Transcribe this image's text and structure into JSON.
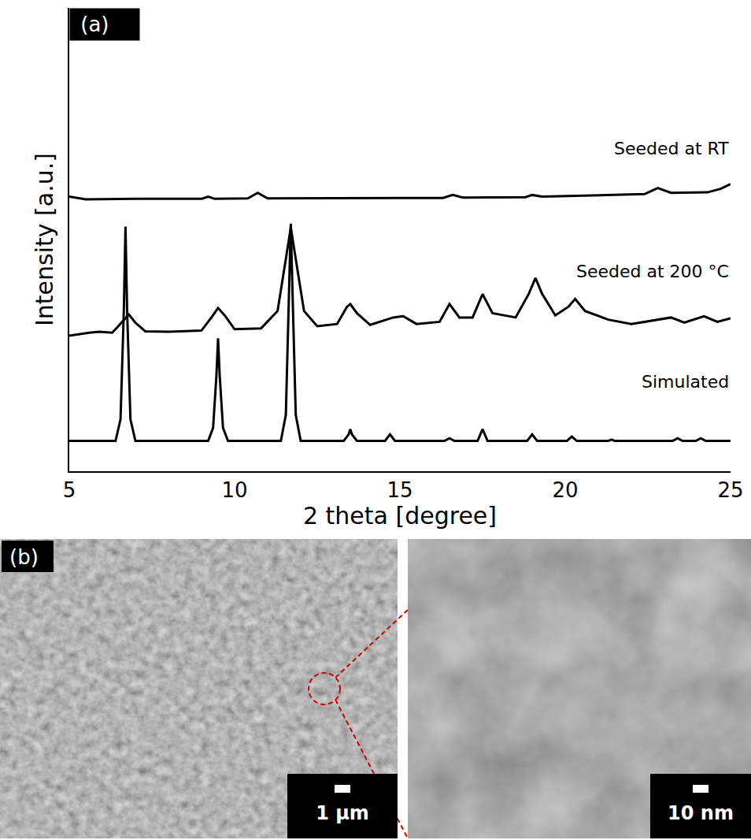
{
  "chart_data": {
    "type": "line",
    "annotations": [
      "(a)"
    ],
    "x_label": "2 theta [degree]",
    "y_label": "Intensity [a.u.]",
    "xlim": [
      5,
      25
    ],
    "xticks": [
      5,
      10,
      15,
      20,
      25
    ],
    "ylim": [
      -7,
      100
    ],
    "yticks": [],
    "tick_labels": "x",
    "grid": false,
    "series": [
      {
        "name": "Seeded at RT",
        "color": "#000000",
        "x": [
          5,
          5.5,
          7,
          9.0,
          9.2,
          9.4,
          10.4,
          10.7,
          11.0,
          14,
          16.3,
          16.6,
          16.9,
          18.8,
          19.0,
          19.3,
          21,
          22.4,
          22.8,
          23.2,
          24.3,
          24.7,
          25
        ],
        "values": [
          56.4,
          55.8,
          55.9,
          55.9,
          56.4,
          55.9,
          56.0,
          57.3,
          56.0,
          56.0,
          56.1,
          56.8,
          56.2,
          56.3,
          56.8,
          56.4,
          56.7,
          57.0,
          58.4,
          57.3,
          57.4,
          58.2,
          59.3
        ]
      },
      {
        "name": "Seeded at 200 °C",
        "color": "#000000",
        "x": [
          5,
          5.6,
          5.9,
          6.3,
          6.6,
          6.8,
          7.0,
          7.3,
          8.0,
          9.0,
          9.3,
          9.5,
          9.7,
          10.0,
          10.8,
          11.3,
          11.55,
          11.7,
          11.85,
          12.1,
          12.5,
          13.1,
          13.4,
          13.5,
          13.7,
          14.1,
          14.8,
          15.1,
          15.5,
          16.2,
          16.5,
          16.8,
          17.2,
          17.5,
          17.8,
          18.5,
          18.9,
          19.1,
          19.3,
          19.7,
          20.1,
          20.3,
          20.6,
          21.3,
          22.0,
          23.2,
          23.6,
          24.2,
          24.6,
          25
        ],
        "values": [
          24.3,
          25.0,
          25.2,
          25.0,
          27.5,
          29.2,
          27.3,
          25.3,
          25.2,
          25.5,
          28.5,
          30.7,
          29.0,
          25.8,
          26.0,
          30.0,
          42.0,
          49.3,
          42.0,
          30.0,
          26.5,
          27.0,
          31.0,
          31.6,
          29.5,
          26.8,
          28.5,
          28.8,
          27.0,
          27.5,
          31.6,
          28.5,
          28.5,
          33.9,
          29.5,
          28.5,
          34.0,
          37.6,
          34.0,
          29.0,
          31.0,
          32.8,
          30.0,
          28.0,
          27.0,
          28.5,
          27.3,
          28.8,
          27.5,
          28.3
        ]
      },
      {
        "name": "Simulated",
        "color": "#000000",
        "x": [
          5,
          6.4,
          6.55,
          6.65,
          6.7,
          6.75,
          6.85,
          7.0,
          9.2,
          9.35,
          9.45,
          9.5,
          9.55,
          9.65,
          9.8,
          11.4,
          11.55,
          11.65,
          11.7,
          11.75,
          11.85,
          12.0,
          13.3,
          13.45,
          13.5,
          13.55,
          13.7,
          14.55,
          14.7,
          14.85,
          16.35,
          16.5,
          16.65,
          17.35,
          17.5,
          17.65,
          18.85,
          19.0,
          19.15,
          20.05,
          20.2,
          20.35,
          21.3,
          21.4,
          21.5,
          23.25,
          23.4,
          23.55,
          23.95,
          24.1,
          24.25,
          25
        ],
        "values": [
          0,
          0,
          5,
          30,
          49.5,
          30,
          5,
          0,
          0,
          3,
          15,
          23.7,
          15,
          3,
          0,
          0,
          6,
          35,
          50.2,
          35,
          6,
          0,
          0,
          1.5,
          2.7,
          1.5,
          0,
          0,
          1.5,
          0,
          0,
          0.6,
          0,
          0,
          2.7,
          0,
          0,
          1.5,
          0,
          0,
          1,
          0,
          0,
          0.3,
          0,
          0,
          0.6,
          0,
          0,
          0.6,
          0,
          0
        ]
      }
    ]
  },
  "sem_panel": {
    "label": "(b)",
    "images": [
      {
        "scale_bar": "1 µm"
      },
      {
        "scale_bar": "10 nm"
      }
    ]
  }
}
